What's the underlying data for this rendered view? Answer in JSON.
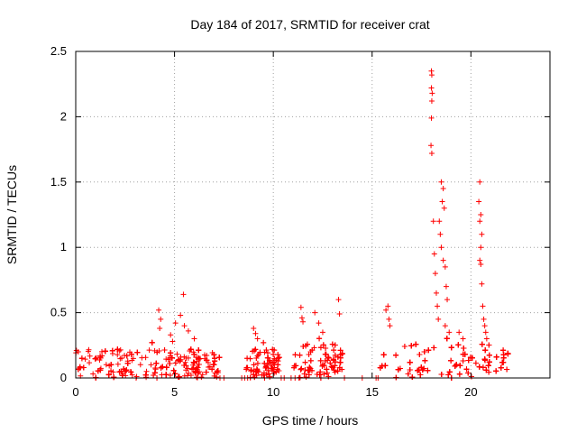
{
  "chart_data": {
    "type": "scatter",
    "title": "Day 184 of 2017, SRMTID for receiver crat",
    "xlabel": "GPS time / hours",
    "ylabel": "SRMTID / TECUs",
    "xlim": [
      0,
      24
    ],
    "ylim": [
      0,
      2.5
    ],
    "xticks": [
      0,
      5,
      10,
      15,
      20
    ],
    "xtick_labels": [
      "0",
      "5",
      "10",
      "15",
      "20"
    ],
    "yticks": [
      0,
      0.5,
      1,
      1.5,
      2,
      2.5
    ],
    "ytick_labels": [
      "0",
      "0.5",
      "1",
      "1.5",
      "2",
      "2.5"
    ],
    "grid": true,
    "marker": "+",
    "color": "#ff0000",
    "clusters": [
      {
        "x0": 0.0,
        "x1": 7.3,
        "base": 0.22,
        "count": 700
      },
      {
        "x0": 8.6,
        "x1": 10.3,
        "base": 0.22,
        "count": 150
      },
      {
        "x0": 11.0,
        "x1": 13.5,
        "base": 0.26,
        "count": 220
      },
      {
        "x0": 15.3,
        "x1": 21.9,
        "base": 0.26,
        "count": 600
      }
    ],
    "peaks": [
      {
        "x": 4.2,
        "y": 0.52
      },
      {
        "x": 4.3,
        "y": 0.45
      },
      {
        "x": 4.25,
        "y": 0.38
      },
      {
        "x": 4.8,
        "y": 0.33
      },
      {
        "x": 4.9,
        "y": 0.28
      },
      {
        "x": 5.05,
        "y": 0.42
      },
      {
        "x": 5.3,
        "y": 0.48
      },
      {
        "x": 5.45,
        "y": 0.64
      },
      {
        "x": 5.5,
        "y": 0.4
      },
      {
        "x": 5.7,
        "y": 0.36
      },
      {
        "x": 6.0,
        "y": 0.3
      },
      {
        "x": 9.0,
        "y": 0.38
      },
      {
        "x": 9.1,
        "y": 0.34
      },
      {
        "x": 9.2,
        "y": 0.3
      },
      {
        "x": 11.4,
        "y": 0.54
      },
      {
        "x": 11.45,
        "y": 0.46
      },
      {
        "x": 11.5,
        "y": 0.43
      },
      {
        "x": 12.1,
        "y": 0.5
      },
      {
        "x": 12.3,
        "y": 0.42
      },
      {
        "x": 12.5,
        "y": 0.35
      },
      {
        "x": 13.3,
        "y": 0.6
      },
      {
        "x": 13.35,
        "y": 0.49
      },
      {
        "x": 15.7,
        "y": 0.52
      },
      {
        "x": 15.8,
        "y": 0.55
      },
      {
        "x": 15.85,
        "y": 0.45
      },
      {
        "x": 15.9,
        "y": 0.4
      },
      {
        "x": 18.0,
        "y": 2.35
      },
      {
        "x": 18.02,
        "y": 2.32
      },
      {
        "x": 18.0,
        "y": 2.22
      },
      {
        "x": 18.04,
        "y": 2.18
      },
      {
        "x": 18.02,
        "y": 2.12
      },
      {
        "x": 18.0,
        "y": 1.99
      },
      {
        "x": 17.98,
        "y": 1.78
      },
      {
        "x": 18.02,
        "y": 1.72
      },
      {
        "x": 18.1,
        "y": 1.2
      },
      {
        "x": 18.15,
        "y": 0.95
      },
      {
        "x": 18.2,
        "y": 0.8
      },
      {
        "x": 18.25,
        "y": 0.65
      },
      {
        "x": 18.3,
        "y": 0.55
      },
      {
        "x": 18.4,
        "y": 1.2
      },
      {
        "x": 18.45,
        "y": 1.1
      },
      {
        "x": 18.5,
        "y": 1.5
      },
      {
        "x": 18.55,
        "y": 1.35
      },
      {
        "x": 18.6,
        "y": 1.45
      },
      {
        "x": 18.65,
        "y": 1.3
      },
      {
        "x": 18.5,
        "y": 1.0
      },
      {
        "x": 18.6,
        "y": 0.9
      },
      {
        "x": 18.7,
        "y": 0.85
      },
      {
        "x": 18.75,
        "y": 0.7
      },
      {
        "x": 18.8,
        "y": 0.6
      },
      {
        "x": 18.35,
        "y": 0.45
      },
      {
        "x": 18.7,
        "y": 0.4
      },
      {
        "x": 18.9,
        "y": 0.35
      },
      {
        "x": 19.4,
        "y": 0.35
      },
      {
        "x": 19.6,
        "y": 0.3
      },
      {
        "x": 20.45,
        "y": 1.5
      },
      {
        "x": 20.4,
        "y": 1.35
      },
      {
        "x": 20.5,
        "y": 1.25
      },
      {
        "x": 20.45,
        "y": 1.2
      },
      {
        "x": 20.55,
        "y": 1.1
      },
      {
        "x": 20.5,
        "y": 1.0
      },
      {
        "x": 20.45,
        "y": 0.9
      },
      {
        "x": 20.5,
        "y": 0.87
      },
      {
        "x": 20.55,
        "y": 0.72
      },
      {
        "x": 20.6,
        "y": 0.55
      },
      {
        "x": 20.65,
        "y": 0.45
      },
      {
        "x": 20.7,
        "y": 0.4
      },
      {
        "x": 20.75,
        "y": 0.35
      },
      {
        "x": 20.8,
        "y": 0.3
      }
    ],
    "zeros": [
      {
        "x": 7.3
      },
      {
        "x": 7.5
      },
      {
        "x": 8.4
      },
      {
        "x": 8.55
      },
      {
        "x": 8.7
      },
      {
        "x": 10.4
      },
      {
        "x": 10.55
      },
      {
        "x": 10.9
      },
      {
        "x": 11.1
      },
      {
        "x": 11.3
      },
      {
        "x": 13.6
      },
      {
        "x": 14.5
      },
      {
        "x": 15.2
      },
      {
        "x": 15.3
      }
    ]
  }
}
